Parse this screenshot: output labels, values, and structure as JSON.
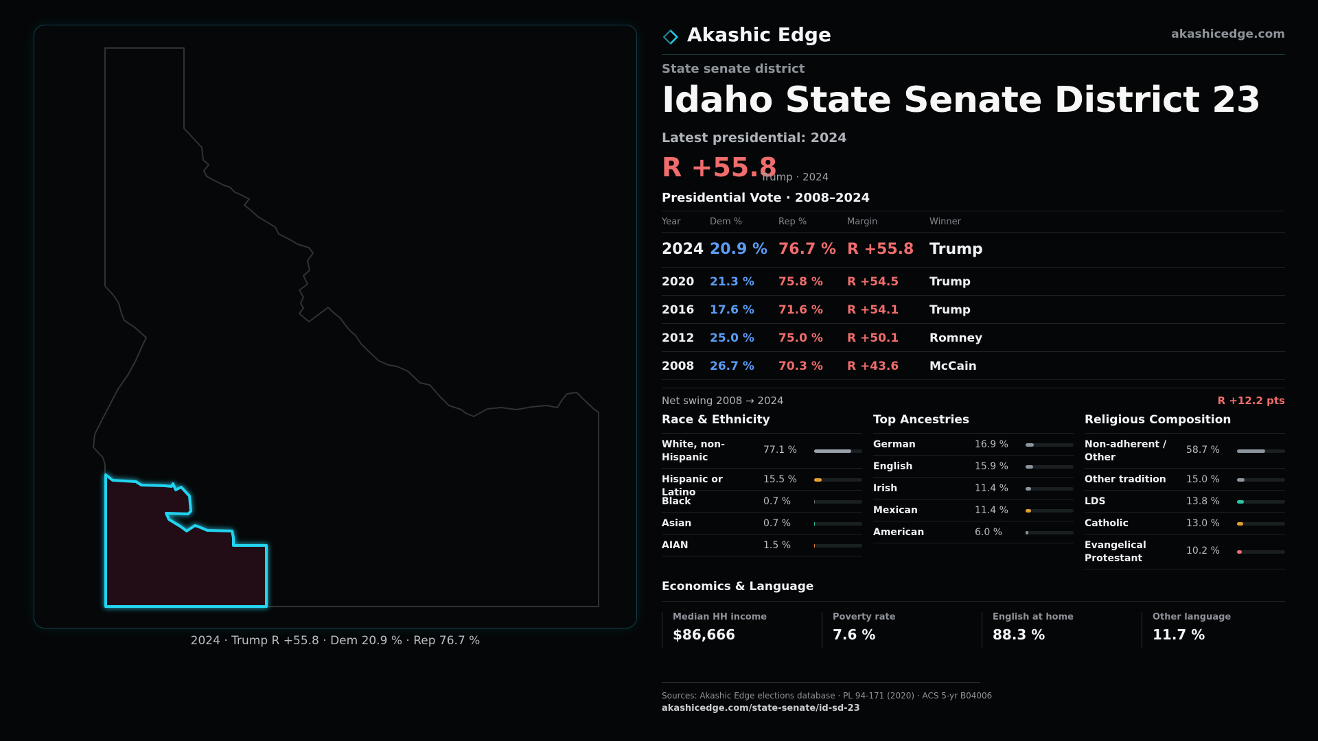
{
  "map": {
    "caption": "2024 · Trump R +55.8 · Dem 20.9 % · Rep 76.7 %",
    "state_outline_color": "#2f3335",
    "district_stroke_color": "#21d4f0",
    "district_fill_color": "#201013"
  },
  "brand": {
    "name": "Akashic Edge",
    "url": "akashicedge.com",
    "icon": "diamond-logo-icon"
  },
  "header": {
    "kicker": "State senate district",
    "title": "Idaho State Senate District 23",
    "latest_label": "Latest presidential: 2024",
    "margin": "R +55.8",
    "margin_sub": "Trump · 2024"
  },
  "presidential": {
    "title": "Presidential Vote · 2008–2024",
    "columns": [
      "Year",
      "Dem %",
      "Rep %",
      "Margin",
      "Winner"
    ],
    "rows": [
      {
        "year": "2024",
        "dem": "20.9 %",
        "rep": "76.7 %",
        "margin": "R +55.8",
        "winner": "Trump"
      },
      {
        "year": "2020",
        "dem": "21.3 %",
        "rep": "75.8 %",
        "margin": "R +54.5",
        "winner": "Trump"
      },
      {
        "year": "2016",
        "dem": "17.6 %",
        "rep": "71.6 %",
        "margin": "R +54.1",
        "winner": "Trump"
      },
      {
        "year": "2012",
        "dem": "25.0 %",
        "rep": "75.0 %",
        "margin": "R +50.1",
        "winner": "Romney"
      },
      {
        "year": "2008",
        "dem": "26.7 %",
        "rep": "70.3 %",
        "margin": "R +43.6",
        "winner": "McCain"
      }
    ],
    "swing_label": "Net swing 2008 → 2024",
    "swing_value": "R +12.2 pts"
  },
  "race": {
    "title": "Race & Ethnicity",
    "items": [
      {
        "label": "White, non-Hispanic",
        "value": "77.1 %",
        "pct": 77.1,
        "color": "#9aa3ad"
      },
      {
        "label": "Hispanic or Latino",
        "value": "15.5 %",
        "pct": 15.5,
        "color": "#e0a030"
      },
      {
        "label": "Black",
        "value": "0.7 %",
        "pct": 0.7,
        "color": "#6a7078"
      },
      {
        "label": "Asian",
        "value": "0.7 %",
        "pct": 0.7,
        "color": "#2cc4a8"
      },
      {
        "label": "AIAN",
        "value": "1.5 %",
        "pct": 1.5,
        "color": "#e08030"
      }
    ]
  },
  "ancestry": {
    "title": "Top Ancestries",
    "items": [
      {
        "label": "German",
        "value": "16.9 %",
        "pct": 16.9,
        "color": "#8d959e"
      },
      {
        "label": "English",
        "value": "15.9 %",
        "pct": 15.9,
        "color": "#8d959e"
      },
      {
        "label": "Irish",
        "value": "11.4 %",
        "pct": 11.4,
        "color": "#8d959e"
      },
      {
        "label": "Mexican",
        "value": "11.4 %",
        "pct": 11.4,
        "color": "#e0a030"
      },
      {
        "label": "American",
        "value": "6.0 %",
        "pct": 6.0,
        "color": "#8d959e"
      }
    ]
  },
  "religion": {
    "title": "Religious Composition",
    "items": [
      {
        "label": "Non-adherent / Other",
        "value": "58.7 %",
        "pct": 58.7,
        "color": "#8d959e"
      },
      {
        "label": "Other tradition",
        "value": "15.0 %",
        "pct": 15.0,
        "color": "#8d959e"
      },
      {
        "label": "LDS",
        "value": "13.8 %",
        "pct": 13.8,
        "color": "#2cc4a8"
      },
      {
        "label": "Catholic",
        "value": "13.0 %",
        "pct": 13.0,
        "color": "#e0a030"
      },
      {
        "label": "Evangelical Protestant",
        "value": "10.2 %",
        "pct": 10.2,
        "color": "#f06d6d"
      }
    ]
  },
  "economics": {
    "title": "Economics & Language",
    "items": [
      {
        "label": "Median HH income",
        "value": "$86,666"
      },
      {
        "label": "Poverty rate",
        "value": "7.6 %"
      },
      {
        "label": "English at home",
        "value": "88.3 %"
      },
      {
        "label": "Other language",
        "value": "11.7 %"
      }
    ]
  },
  "sources": {
    "text": "Sources: Akashic Edge elections database · PL 94-171 (2020) · ACS 5-yr B04006",
    "url": "akashicedge.com/state-senate/id-sd-23"
  },
  "colors": {
    "dem": "#5b9cf5",
    "rep": "#f06d6d",
    "accent": "#21d4f0"
  }
}
